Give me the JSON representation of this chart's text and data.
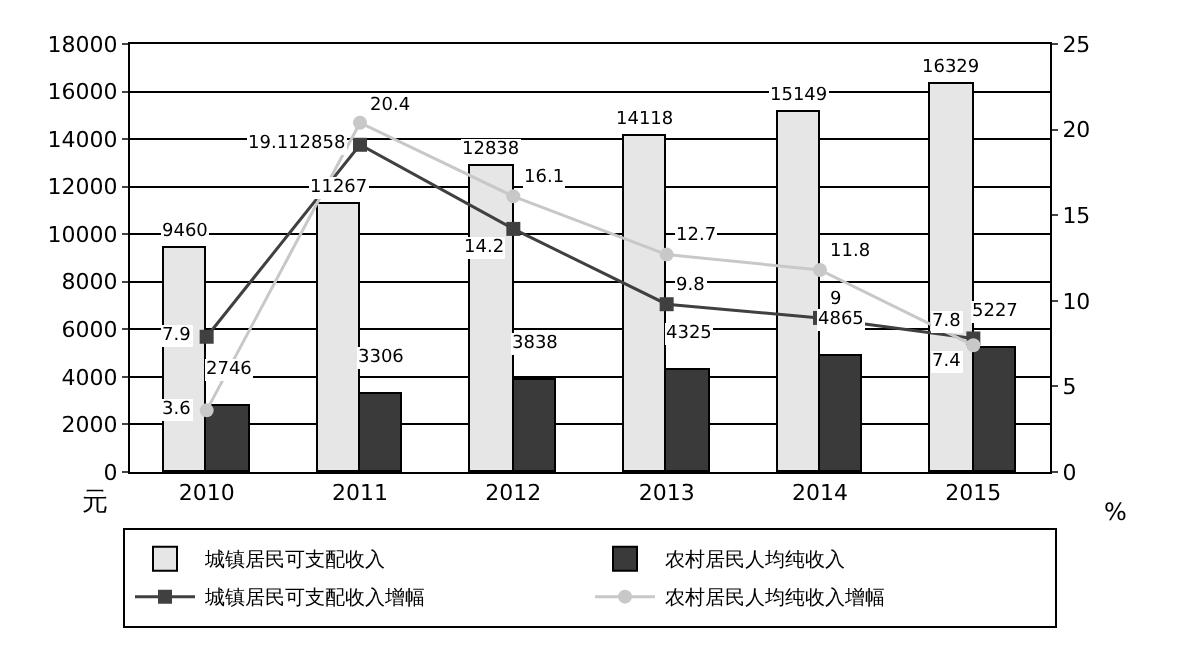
{
  "chart_data": {
    "type": "bar",
    "categories": [
      "2010",
      "2011",
      "2012",
      "2013",
      "2014",
      "2015"
    ],
    "series": [
      {
        "name": "城镇居民可支配收入",
        "color": "#e6e6e6",
        "values": [
          9460,
          11267,
          12838,
          14118,
          15149,
          16329
        ]
      },
      {
        "name": "农村居民人均纯收入",
        "color": "#3a3a3a",
        "values": [
          2746,
          3306,
          3838,
          4325,
          4865,
          5227
        ]
      },
      {
        "name": "城镇居民可支配收入增幅",
        "type": "line",
        "axis": "y2",
        "color": "#404040",
        "marker": "square",
        "values": [
          7.9,
          19.112858,
          14.2,
          9.8,
          9,
          7.8
        ]
      },
      {
        "name": "农村居民人均纯收入增幅",
        "type": "line",
        "axis": "y2",
        "color": "#c8c8c8",
        "marker": "circle",
        "values": [
          3.6,
          20.4,
          16.1,
          12.7,
          11.8,
          7.4
        ]
      }
    ],
    "ylabel": "元",
    "y2label": "%",
    "ylim": [
      0,
      18000
    ],
    "yticks": [
      0,
      2000,
      4000,
      6000,
      8000,
      10000,
      12000,
      14000,
      16000,
      18000
    ],
    "y2lim": [
      0,
      25
    ],
    "y2ticks": [
      0,
      5,
      10,
      15,
      20,
      25
    ],
    "data_labels": true,
    "grid": "y",
    "legend": "bottom"
  }
}
